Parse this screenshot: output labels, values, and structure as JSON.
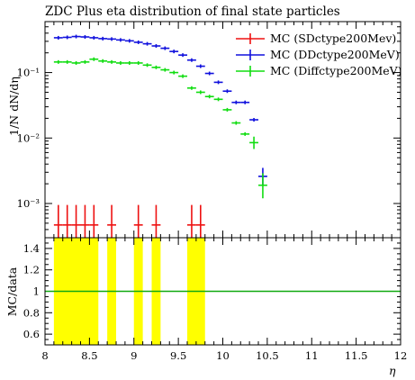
{
  "chart_data": {
    "type": "scatter",
    "title": "ZDC Plus eta distribution of final state particles",
    "xlabel": "η",
    "ylabel": "1/N dN/dη",
    "ratio_ylabel": "MC/data",
    "xlim": [
      8,
      12
    ],
    "ylim": [
      0.0003,
      0.6
    ],
    "yscale": "log",
    "ratio_ylim": [
      0.5,
      1.5
    ],
    "x_ticks": [
      "8",
      "8.5",
      "9",
      "9.5",
      "10",
      "10.5",
      "11",
      "11.5",
      "12"
    ],
    "y_ticks": [
      "10⁻³",
      "10⁻²",
      "10⁻¹"
    ],
    "ratio_ticks": [
      "0.6",
      "0.8",
      "1",
      "1.2",
      "1.4"
    ],
    "legend_position": "top-right",
    "series": [
      {
        "name": "MC (SDctype200Mev)",
        "color": "#ee1111",
        "points": [
          {
            "x": 8.15,
            "y": 0.00047,
            "lo": 0.00022,
            "hi": 0.00095
          },
          {
            "x": 8.25,
            "y": 0.00047,
            "lo": 0.00022,
            "hi": 0.00095
          },
          {
            "x": 8.35,
            "y": 0.00047,
            "lo": 0.00022,
            "hi": 0.00095
          },
          {
            "x": 8.45,
            "y": 0.00047,
            "lo": 0.00022,
            "hi": 0.00095
          },
          {
            "x": 8.55,
            "y": 0.00047,
            "lo": 0.00022,
            "hi": 0.00095
          },
          {
            "x": 8.75,
            "y": 0.00047,
            "lo": 0.00022,
            "hi": 0.00095
          },
          {
            "x": 9.05,
            "y": 0.00047,
            "lo": 0.00022,
            "hi": 0.00095
          },
          {
            "x": 9.25,
            "y": 0.00047,
            "lo": 0.00022,
            "hi": 0.00095
          },
          {
            "x": 9.65,
            "y": 0.00047,
            "lo": 0.00022,
            "hi": 0.00095
          },
          {
            "x": 9.75,
            "y": 0.00047,
            "lo": 0.00022,
            "hi": 0.00095
          }
        ]
      },
      {
        "name": "MC (DDctype200MeV)",
        "color": "#1111dd",
        "points": [
          {
            "x": 8.15,
            "y": 0.34
          },
          {
            "x": 8.25,
            "y": 0.345
          },
          {
            "x": 8.35,
            "y": 0.355
          },
          {
            "x": 8.45,
            "y": 0.35
          },
          {
            "x": 8.55,
            "y": 0.34
          },
          {
            "x": 8.65,
            "y": 0.33
          },
          {
            "x": 8.75,
            "y": 0.325
          },
          {
            "x": 8.85,
            "y": 0.315
          },
          {
            "x": 8.95,
            "y": 0.305
          },
          {
            "x": 9.05,
            "y": 0.29
          },
          {
            "x": 9.15,
            "y": 0.275
          },
          {
            "x": 9.25,
            "y": 0.255
          },
          {
            "x": 9.35,
            "y": 0.235
          },
          {
            "x": 9.45,
            "y": 0.21
          },
          {
            "x": 9.55,
            "y": 0.185
          },
          {
            "x": 9.65,
            "y": 0.155
          },
          {
            "x": 9.75,
            "y": 0.125
          },
          {
            "x": 9.85,
            "y": 0.097
          },
          {
            "x": 9.95,
            "y": 0.071
          },
          {
            "x": 10.05,
            "y": 0.052
          },
          {
            "x": 10.15,
            "y": 0.035
          },
          {
            "x": 10.25,
            "y": 0.035
          },
          {
            "x": 10.35,
            "y": 0.019
          },
          {
            "x": 10.45,
            "y": 0.0026,
            "lo": 0.0019,
            "hi": 0.0035
          }
        ]
      },
      {
        "name": "MC (Diffctype200MeV)",
        "color": "#11dd11",
        "points": [
          {
            "x": 8.15,
            "y": 0.145
          },
          {
            "x": 8.25,
            "y": 0.145
          },
          {
            "x": 8.35,
            "y": 0.14
          },
          {
            "x": 8.45,
            "y": 0.145
          },
          {
            "x": 8.55,
            "y": 0.16
          },
          {
            "x": 8.65,
            "y": 0.15
          },
          {
            "x": 8.75,
            "y": 0.145
          },
          {
            "x": 8.85,
            "y": 0.14
          },
          {
            "x": 8.95,
            "y": 0.14
          },
          {
            "x": 9.05,
            "y": 0.14
          },
          {
            "x": 9.15,
            "y": 0.13
          },
          {
            "x": 9.25,
            "y": 0.12
          },
          {
            "x": 9.35,
            "y": 0.11
          },
          {
            "x": 9.45,
            "y": 0.1
          },
          {
            "x": 9.55,
            "y": 0.088
          },
          {
            "x": 9.65,
            "y": 0.058
          },
          {
            "x": 9.75,
            "y": 0.05
          },
          {
            "x": 9.85,
            "y": 0.043
          },
          {
            "x": 9.95,
            "y": 0.039
          },
          {
            "x": 10.05,
            "y": 0.027
          },
          {
            "x": 10.15,
            "y": 0.017
          },
          {
            "x": 10.25,
            "y": 0.0115
          },
          {
            "x": 10.35,
            "y": 0.0085,
            "lo": 0.0068,
            "hi": 0.0105
          },
          {
            "x": 10.45,
            "y": 0.0019,
            "lo": 0.0012,
            "hi": 0.0029
          }
        ]
      }
    ],
    "ratio": {
      "reference_value": 1,
      "reference_color": "#11aa11",
      "band_color": "#ffff00",
      "bands": [
        [
          8.1,
          8.6
        ],
        [
          8.7,
          8.8
        ],
        [
          9.0,
          9.1
        ],
        [
          9.2,
          9.3
        ],
        [
          9.6,
          9.8
        ]
      ]
    }
  }
}
